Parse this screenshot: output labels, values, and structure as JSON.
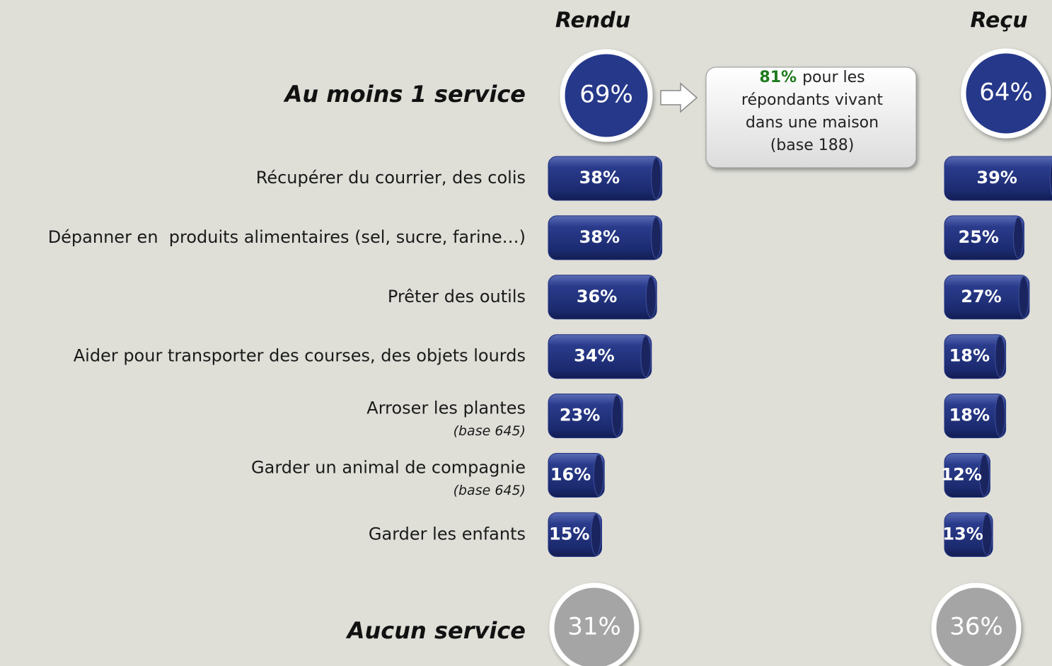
{
  "chart_data": {
    "type": "bar",
    "categories": [
      "Récupérer du courrier, des colis",
      "Dépanner en  produits alimentaires (sel, sucre, farine…)",
      "Prêter des outils",
      "Aider pour transporter des courses, des objets lourds",
      "Arroser les plantes",
      "Garder un animal de compagnie",
      "Garder les enfants"
    ],
    "category_notes": [
      null,
      null,
      null,
      null,
      "(base 645)",
      "(base 645)",
      null
    ],
    "series": [
      {
        "name": "Rendu",
        "color": "#22327e",
        "values": [
          38,
          38,
          36,
          34,
          23,
          16,
          15
        ],
        "value_labels": [
          "38%",
          "38%",
          "36%",
          "34%",
          "23%",
          "16%",
          "15%"
        ]
      },
      {
        "name": "Reçu",
        "color": "#22327e",
        "values": [
          39,
          25,
          27,
          18,
          18,
          12,
          13
        ],
        "value_labels": [
          "39%",
          "25%",
          "27%",
          "18%",
          "18%",
          "12%",
          "13%"
        ]
      }
    ],
    "summary": [
      {
        "label": "Au moins 1 service",
        "color": "#26398a",
        "values": [
          69,
          64
        ],
        "value_labels": [
          "69%",
          "64%"
        ]
      },
      {
        "label": "Aucun service",
        "color": "#a5a5a5",
        "values": [
          31,
          36
        ],
        "value_labels": [
          "31%",
          "36%"
        ]
      }
    ],
    "callout": {
      "highlight": "81%",
      "lines": [
        "pour les",
        "répondants vivant",
        "dans une maison",
        "(base 188)"
      ]
    }
  }
}
